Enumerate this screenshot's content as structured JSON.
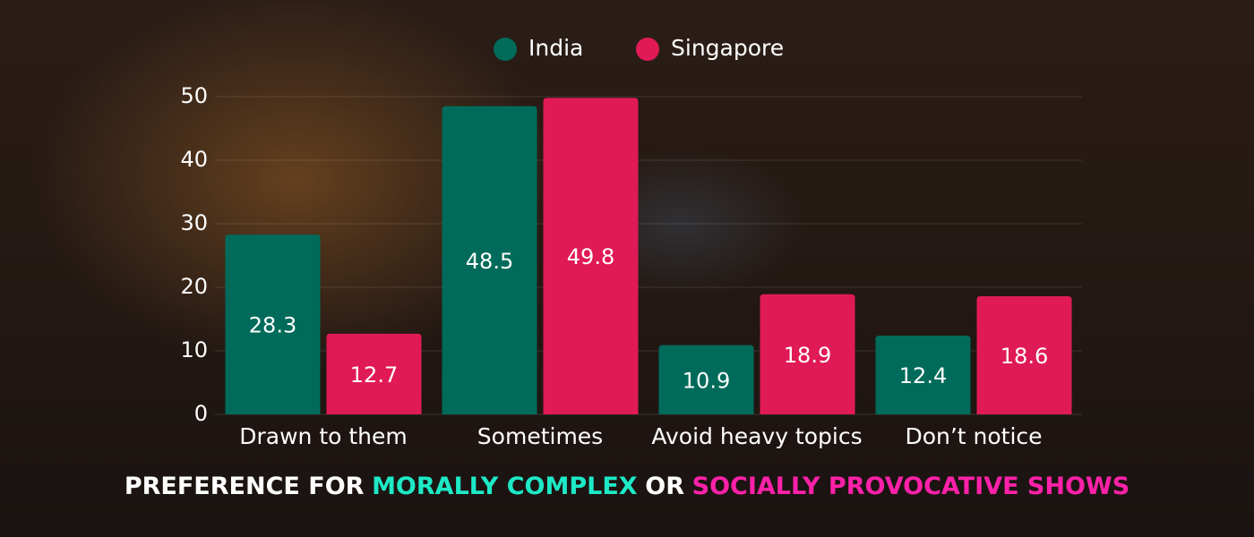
{
  "chart_data": {
    "type": "bar",
    "title": [
      {
        "text": "PREFERENCE FOR",
        "color": "#ffffff"
      },
      {
        "text": "MORALLY COMPLEX",
        "color": "#1de9c6"
      },
      {
        "text": "OR",
        "color": "#ffffff"
      },
      {
        "text": "SOCIALLY PROVOCATIVE SHOWS",
        "color": "#ff21a9"
      }
    ],
    "categories": [
      "Drawn to them",
      "Sometimes",
      "Avoid heavy topics",
      "Don’t notice"
    ],
    "series": [
      {
        "name": "India",
        "color": "#006b5a",
        "values": [
          28.3,
          48.5,
          10.9,
          12.4
        ]
      },
      {
        "name": "Singapore",
        "color": "#e01a56",
        "values": [
          12.7,
          49.8,
          18.9,
          18.6
        ]
      }
    ],
    "ylim": [
      0,
      50
    ],
    "yticks": [
      0,
      10,
      20,
      30,
      40,
      50
    ],
    "grid": true,
    "legend": "top"
  }
}
